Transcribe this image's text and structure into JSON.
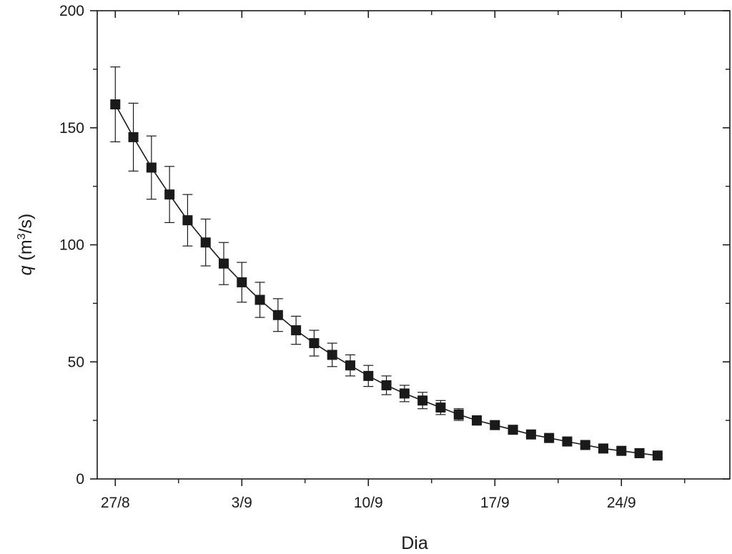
{
  "chart_data": {
    "type": "scatter",
    "xlabel": "Dia",
    "ylabel_var": "q",
    "ylabel_unit_pre": " (m",
    "ylabel_unit_sup": "3",
    "ylabel_unit_post": "/s)",
    "xlim": [
      -1,
      34
    ],
    "ylim": [
      0,
      200
    ],
    "x_ticks": [
      0,
      7,
      14,
      21,
      28
    ],
    "x_tick_labels": [
      "27/8",
      "3/9",
      "10/9",
      "17/9",
      "24/9"
    ],
    "x_minor_ticks": [
      3.5,
      10.5,
      17.5,
      24.5,
      31.5
    ],
    "y_ticks": [
      0,
      50,
      100,
      150,
      200
    ],
    "y_tick_labels": [
      "0",
      "50",
      "100",
      "150",
      "200"
    ],
    "y_minor_ticks": [
      25,
      75,
      125,
      175
    ],
    "grid": false,
    "marker": "filled-square",
    "line_color": "#1a1a1a",
    "marker_color": "#1a1a1a",
    "series": [
      {
        "x": [
          0,
          1,
          2,
          3,
          4,
          5,
          6,
          7,
          8,
          9,
          10,
          11,
          12,
          13,
          14,
          15,
          16,
          17,
          18,
          19,
          20,
          21,
          22,
          23,
          24,
          25,
          26,
          27,
          28,
          29,
          30
        ],
        "y": [
          160,
          146,
          133,
          121.5,
          110.5,
          101,
          92,
          84,
          76.5,
          70,
          63.5,
          58,
          53,
          48.5,
          44,
          40,
          36.5,
          33.5,
          30.5,
          27.5,
          25,
          23,
          21,
          19,
          17.5,
          16,
          14.5,
          13,
          12,
          11,
          10
        ],
        "err": [
          16,
          14.5,
          13.5,
          12,
          11,
          10,
          9,
          8.5,
          7.5,
          7,
          6,
          5.5,
          5,
          4.5,
          4.5,
          4,
          3.5,
          3.5,
          3,
          2.5,
          2,
          1.5,
          1,
          1,
          1,
          1,
          1,
          1,
          1,
          1,
          1
        ]
      }
    ]
  }
}
